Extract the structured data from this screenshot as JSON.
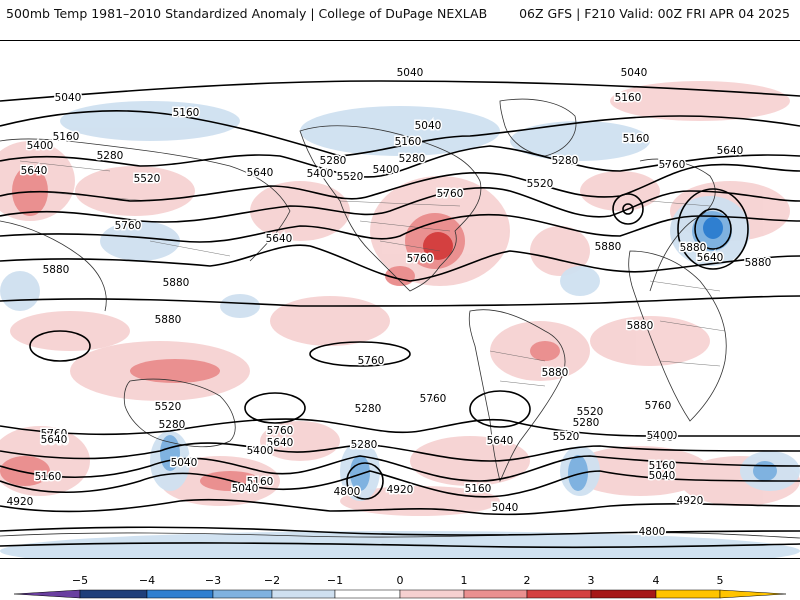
{
  "header": {
    "left": "500mb Temp 1981–2010 Standardized Anomaly | College of DuPage NEXLAB",
    "right": "06Z GFS | F210 Valid: 00Z FRI APR 04 2025"
  },
  "colorbar": {
    "ticks": [
      "−5",
      "−4",
      "−3",
      "−2",
      "−1",
      "0",
      "1",
      "2",
      "3",
      "4",
      "5"
    ],
    "colors": [
      "#6a3fa0",
      "#1f3f7a",
      "#2f7fd0",
      "#7fb2e0",
      "#cfe0f0",
      "#ffffff",
      "#f6d0d0",
      "#ea9090",
      "#d44040",
      "#a61818",
      "#ffc400"
    ]
  },
  "contour_labels": [
    "5040",
    "5040",
    "5040",
    "5160",
    "5160",
    "5040",
    "5160",
    "5160",
    "5400",
    "5280",
    "5280",
    "5160",
    "5280",
    "5640",
    "5520",
    "5400",
    "5520",
    "5640",
    "5400",
    "5280",
    "5640",
    "5520",
    "5760",
    "5760",
    "5760",
    "5640",
    "5760",
    "5640",
    "5760",
    "5880",
    "5880",
    "5880",
    "5760",
    "5880",
    "5880",
    "5880",
    "5880",
    "5880",
    "5880",
    "5760",
    "5520",
    "5280",
    "5520",
    "5280",
    "5520",
    "5280",
    "5280",
    "5760",
    "5760",
    "5640",
    "5640",
    "5400",
    "5400",
    "5400",
    "5160",
    "5160",
    "5040",
    "5040",
    "5160",
    "5160",
    "5040",
    "4920",
    "4800",
    "4920",
    "5040",
    "4920",
    "4800",
    "5640",
    "5640",
    "5400",
    "5760"
  ]
}
